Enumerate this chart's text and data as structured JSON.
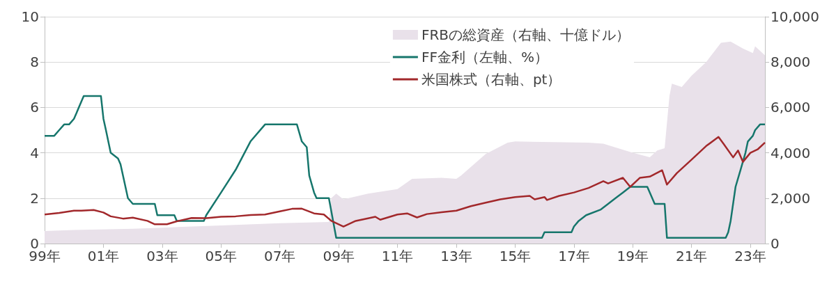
{
  "chart_data": {
    "type": "line",
    "xlim": [
      "1999-01",
      "2023-07"
    ],
    "xticks": [
      {
        "value": "1999-01",
        "label": "99年"
      },
      {
        "value": "2001-01",
        "label": "01年"
      },
      {
        "value": "2003-01",
        "label": "03年"
      },
      {
        "value": "2005-01",
        "label": "05年"
      },
      {
        "value": "2007-01",
        "label": "07年"
      },
      {
        "value": "2009-01",
        "label": "09年"
      },
      {
        "value": "2011-01",
        "label": "11年"
      },
      {
        "value": "2013-01",
        "label": "13年"
      },
      {
        "value": "2015-01",
        "label": "15年"
      },
      {
        "value": "2017-01",
        "label": "17年"
      },
      {
        "value": "2019-01",
        "label": "19年"
      },
      {
        "value": "2021-01",
        "label": "21年"
      },
      {
        "value": "2023-01",
        "label": "23年"
      }
    ],
    "ylim": [
      0,
      10
    ],
    "yticks": [
      0,
      2,
      4,
      6,
      8,
      10
    ],
    "y2lim": [
      0,
      10000
    ],
    "y2ticks": [
      0,
      {
        "value": 2000,
        "label": "2,000"
      },
      {
        "value": 4000,
        "label": "4,000"
      },
      {
        "value": 6000,
        "label": "6,000"
      },
      {
        "value": 8000,
        "label": "8,000"
      },
      {
        "value": 10000,
        "label": "10,000"
      }
    ],
    "grid": "y",
    "legend": "top right",
    "marker": "none",
    "line_style": "solid",
    "series": [
      {
        "name": "FRBの総資産（右軸、十億ドル）",
        "type": "area",
        "axis": "y2",
        "color": "#e9e1ea",
        "x": [
          "1999-01",
          "2000-01",
          "2002-01",
          "2003-01",
          "2005-01",
          "2007-01",
          "2008-09",
          "2008-10",
          "2008-12",
          "2009-03",
          "2010-01",
          "2011-01",
          "2011-07",
          "2012-07",
          "2013-01",
          "2013-03",
          "2014-01",
          "2014-10",
          "2015-01",
          "2017-07",
          "2018-01",
          "2019-01",
          "2019-08",
          "2019-11",
          "2020-02",
          "2020-04",
          "2020-05",
          "2020-09",
          "2021-01",
          "2021-07",
          "2022-01",
          "2022-05",
          "2022-10",
          "2023-02",
          "2023-03",
          "2023-07"
        ],
        "values": [
          550,
          600,
          650,
          700,
          800,
          900,
          950,
          2000,
          2200,
          1950,
          2200,
          2400,
          2850,
          2900,
          2850,
          3000,
          3950,
          4450,
          4500,
          4450,
          4400,
          4000,
          3800,
          4100,
          4200,
          6500,
          7050,
          6900,
          7400,
          8000,
          8850,
          8900,
          8600,
          8400,
          8700,
          8300
        ]
      },
      {
        "name": "FF金利（左軸、%）",
        "type": "line",
        "color": "#16766c",
        "x": [
          "1999-01",
          "1999-05",
          "1999-07",
          "1999-09",
          "1999-11",
          "2000-01",
          "2000-02",
          "2000-03",
          "2000-05",
          "2000-12",
          "2001-01",
          "2001-02",
          "2001-04",
          "2001-07",
          "2001-08",
          "2001-11",
          "2002-01",
          "2002-10",
          "2002-11",
          "2003-06",
          "2003-07",
          "2004-06",
          "2004-07",
          "2005-01",
          "2005-07",
          "2006-01",
          "2006-07",
          "2007-08",
          "2007-10",
          "2007-12",
          "2008-01",
          "2008-03",
          "2008-04",
          "2008-09",
          "2008-12",
          "2015-12",
          "2016-01",
          "2016-12",
          "2017-01",
          "2017-03",
          "2017-06",
          "2017-12",
          "2018-03",
          "2018-06",
          "2018-09",
          "2018-12",
          "2019-07",
          "2019-08",
          "2019-10",
          "2020-02",
          "2020-03",
          "2022-03",
          "2022-04",
          "2022-05",
          "2022-07",
          "2022-09",
          "2022-11",
          "2022-12",
          "2023-02",
          "2023-03",
          "2023-05",
          "2023-07"
        ],
        "values": [
          4.75,
          4.75,
          5,
          5.25,
          5.25,
          5.5,
          5.75,
          6,
          6.5,
          6.5,
          5.5,
          5,
          4,
          3.75,
          3.5,
          2,
          1.75,
          1.75,
          1.25,
          1.25,
          1,
          1,
          1.25,
          2.25,
          3.25,
          4.5,
          5.25,
          5.25,
          4.5,
          4.25,
          3,
          2.25,
          2,
          2,
          0.25,
          0.25,
          0.5,
          0.5,
          0.75,
          1,
          1.25,
          1.5,
          1.75,
          2,
          2.25,
          2.5,
          2.5,
          2.25,
          1.75,
          1.75,
          0.25,
          0.25,
          0.5,
          1,
          2.5,
          3.25,
          4,
          4.5,
          4.75,
          5,
          5.25,
          5.25
        ]
      },
      {
        "name": "米国株式（右軸、pt）",
        "type": "line",
        "axis": "y2",
        "color": "#a2282b",
        "x": [
          "1999-01",
          "1999-07",
          "2000-01",
          "2000-04",
          "2000-09",
          "2001-01",
          "2001-04",
          "2001-09",
          "2002-01",
          "2002-07",
          "2002-10",
          "2003-03",
          "2003-07",
          "2004-01",
          "2004-07",
          "2005-01",
          "2005-07",
          "2006-01",
          "2006-07",
          "2007-01",
          "2007-06",
          "2007-10",
          "2008-03",
          "2008-07",
          "2008-10",
          "2009-03",
          "2009-08",
          "2010-01",
          "2010-04",
          "2010-06",
          "2011-01",
          "2011-05",
          "2011-09",
          "2012-01",
          "2012-07",
          "2013-01",
          "2013-07",
          "2014-01",
          "2014-07",
          "2015-01",
          "2015-07",
          "2015-09",
          "2016-01",
          "2016-02",
          "2016-07",
          "2017-01",
          "2017-07",
          "2018-01",
          "2018-03",
          "2018-09",
          "2018-12",
          "2019-04",
          "2019-08",
          "2020-01",
          "2020-03",
          "2020-07",
          "2021-01",
          "2021-07",
          "2021-12",
          "2022-02",
          "2022-06",
          "2022-08",
          "2022-10",
          "2023-01",
          "2023-04",
          "2023-07"
        ],
        "values": [
          1280,
          1350,
          1450,
          1450,
          1480,
          1370,
          1200,
          1100,
          1140,
          1000,
          850,
          850,
          980,
          1130,
          1120,
          1180,
          1200,
          1260,
          1280,
          1420,
          1530,
          1540,
          1330,
          1280,
          1000,
          750,
          1000,
          1110,
          1180,
          1050,
          1280,
          1330,
          1150,
          1300,
          1380,
          1450,
          1650,
          1800,
          1950,
          2050,
          2100,
          1950,
          2050,
          1920,
          2100,
          2250,
          2450,
          2750,
          2650,
          2900,
          2500,
          2900,
          2950,
          3230,
          2600,
          3100,
          3700,
          4300,
          4700,
          4400,
          3800,
          4100,
          3600,
          4000,
          4150,
          4450
        ]
      }
    ]
  }
}
